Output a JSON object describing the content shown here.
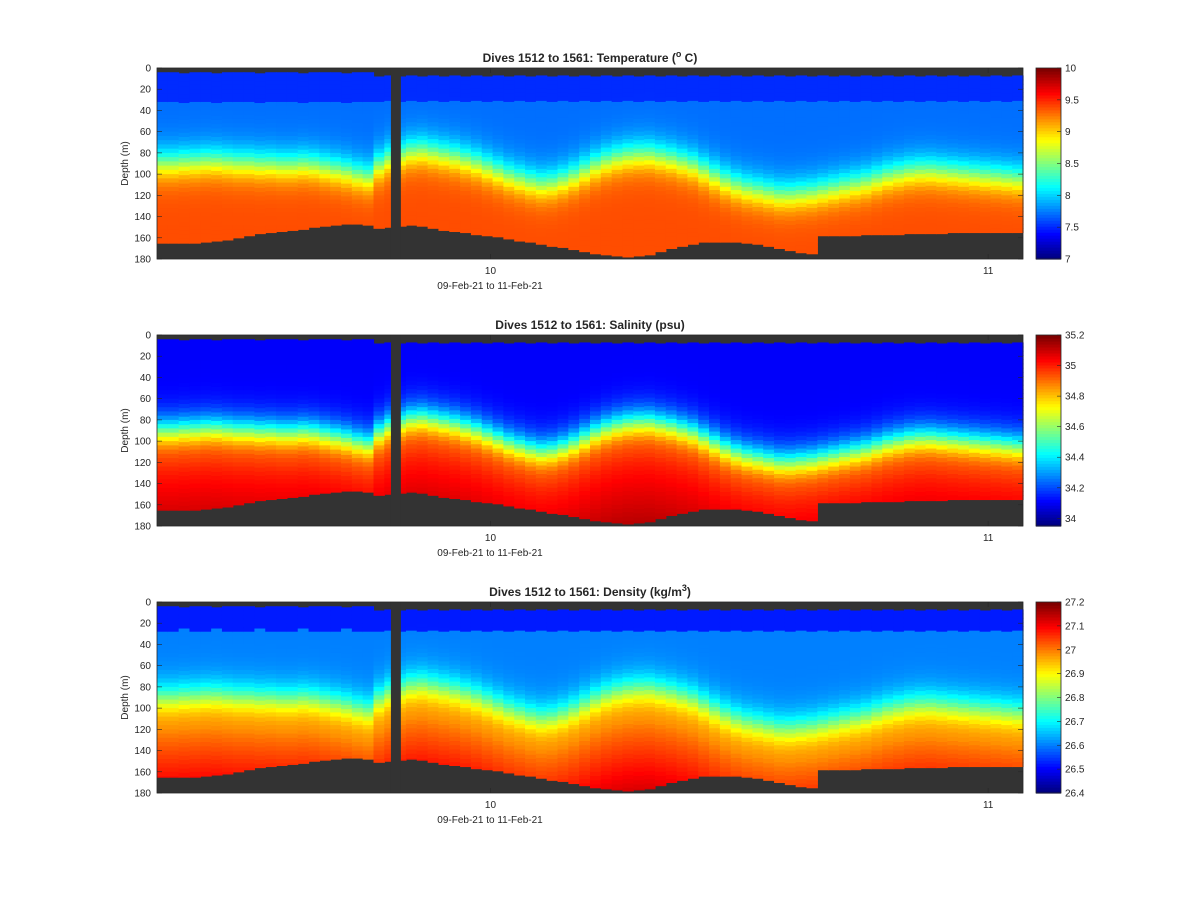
{
  "chart_data": [
    {
      "type": "heatmap",
      "title": "Dives 1512 to 1561: Temperature (",
      "title_sup": "o",
      "title_end": " C)",
      "xlabel": "09-Feb-21 to 11-Feb-21",
      "ylabel": "Depth (m)",
      "x_ticks": [
        "10",
        "11"
      ],
      "x_tick_positions_days": [
        1.0,
        2.0
      ],
      "xlim_days": [
        0.33,
        2.07
      ],
      "y_ticks": [
        0,
        20,
        40,
        60,
        80,
        100,
        120,
        140,
        160,
        180
      ],
      "ylim": [
        0,
        180
      ],
      "y_reversed": true,
      "colorbar_ticks": [
        7,
        7.5,
        8,
        8.5,
        9,
        9.5,
        10
      ],
      "colorbar_tick_labels": [
        "7",
        "7.5",
        "8",
        "8.5",
        "9",
        "9.5",
        "10"
      ],
      "clim": [
        7,
        10
      ],
      "colormap": "jet",
      "surface_value": 7.7,
      "deep_value": 9.4,
      "missing_color": "#333333"
    },
    {
      "type": "heatmap",
      "title": "Dives 1512 to 1561: Salinity (psu)",
      "title_sup": "",
      "title_end": "",
      "xlabel": "09-Feb-21 to 11-Feb-21",
      "ylabel": "Depth (m)",
      "x_ticks": [
        "10",
        "11"
      ],
      "x_tick_positions_days": [
        1.0,
        2.0
      ],
      "xlim_days": [
        0.33,
        2.07
      ],
      "y_ticks": [
        0,
        20,
        40,
        60,
        80,
        100,
        120,
        140,
        160,
        180
      ],
      "ylim": [
        0,
        180
      ],
      "y_reversed": true,
      "colorbar_ticks": [
        34,
        34.2,
        34.4,
        34.6,
        34.8,
        35,
        35.2
      ],
      "colorbar_tick_labels": [
        "34",
        "34.2",
        "34.4",
        "34.6",
        "34.8",
        "35",
        "35.2"
      ],
      "clim": [
        33.95,
        35.2
      ],
      "colormap": "jet",
      "surface_value": 34.1,
      "deep_value": 35.0,
      "missing_color": "#333333"
    },
    {
      "type": "heatmap",
      "title": "Dives 1512 to 1561: Density (kg/m",
      "title_sup": "3",
      "title_end": ")",
      "xlabel": "09-Feb-21 to 11-Feb-21",
      "ylabel": "Depth (m)",
      "x_ticks": [
        "10",
        "11"
      ],
      "x_tick_positions_days": [
        1.0,
        2.0
      ],
      "xlim_days": [
        0.33,
        2.07
      ],
      "y_ticks": [
        0,
        20,
        40,
        60,
        80,
        100,
        120,
        140,
        160,
        180
      ],
      "ylim": [
        0,
        180
      ],
      "y_reversed": true,
      "colorbar_ticks": [
        26.4,
        26.5,
        26.6,
        26.7,
        26.8,
        26.9,
        27,
        27.1,
        27.2
      ],
      "colorbar_tick_labels": [
        "26.4",
        "26.5",
        "26.6",
        "26.7",
        "26.8",
        "26.9",
        "27",
        "27.1",
        "27.2"
      ],
      "clim": [
        26.4,
        27.2
      ],
      "colormap": "jet",
      "surface_value": 26.6,
      "deep_value": 27.0,
      "missing_color": "#333333"
    }
  ],
  "profiles": {
    "bottom_depth_m": [
      165,
      165,
      165,
      165,
      164,
      163,
      162,
      160,
      158,
      156,
      155,
      154,
      153,
      152,
      150,
      149,
      148,
      147,
      147,
      148,
      151,
      150,
      149,
      148,
      149,
      151,
      153,
      154,
      155,
      157,
      158,
      159,
      161,
      163,
      164,
      166,
      168,
      169,
      171,
      173,
      175,
      176,
      177,
      178,
      177,
      176,
      173,
      170,
      168,
      166,
      164,
      164,
      164,
      164,
      165,
      166,
      168,
      170,
      172,
      174,
      175,
      158,
      158,
      158,
      158,
      157,
      157,
      157,
      157,
      156,
      156,
      156,
      156,
      155,
      155,
      155,
      155,
      155,
      155,
      155
    ],
    "surface_gap_m": [
      4,
      4,
      5,
      4,
      4,
      5,
      4,
      4,
      4,
      5,
      4,
      4,
      4,
      5,
      4,
      4,
      4,
      5,
      4,
      4,
      8,
      7,
      8,
      7,
      8,
      7,
      8,
      7,
      8,
      7,
      8,
      7,
      8,
      7,
      8,
      7,
      8,
      7,
      8,
      7,
      8,
      7,
      8,
      7,
      8,
      7,
      8,
      7,
      8,
      7,
      8,
      7,
      8,
      7,
      8,
      7,
      8,
      7,
      8,
      7,
      8,
      7,
      8,
      7,
      8,
      7,
      8,
      7,
      8,
      7,
      8,
      7,
      8,
      7,
      8,
      7,
      8,
      7,
      8,
      7
    ],
    "thermocline_depth_m": [
      88,
      88,
      87,
      87,
      86,
      86,
      87,
      88,
      88,
      89,
      89,
      90,
      90,
      89,
      90,
      92,
      94,
      96,
      99,
      101,
      90,
      84,
      80,
      77,
      76,
      78,
      80,
      82,
      85,
      88,
      92,
      96,
      100,
      103,
      106,
      108,
      107,
      104,
      100,
      95,
      90,
      86,
      83,
      81,
      80,
      80,
      82,
      84,
      87,
      90,
      95,
      100,
      105,
      109,
      112,
      114,
      116,
      118,
      118,
      117,
      116,
      114,
      112,
      110,
      108,
      106,
      103,
      100,
      98,
      96,
      95,
      95,
      96,
      97,
      98,
      99,
      100,
      101,
      102,
      103
    ],
    "gap_start_day": 0.8,
    "gap_end_day": 0.82
  }
}
